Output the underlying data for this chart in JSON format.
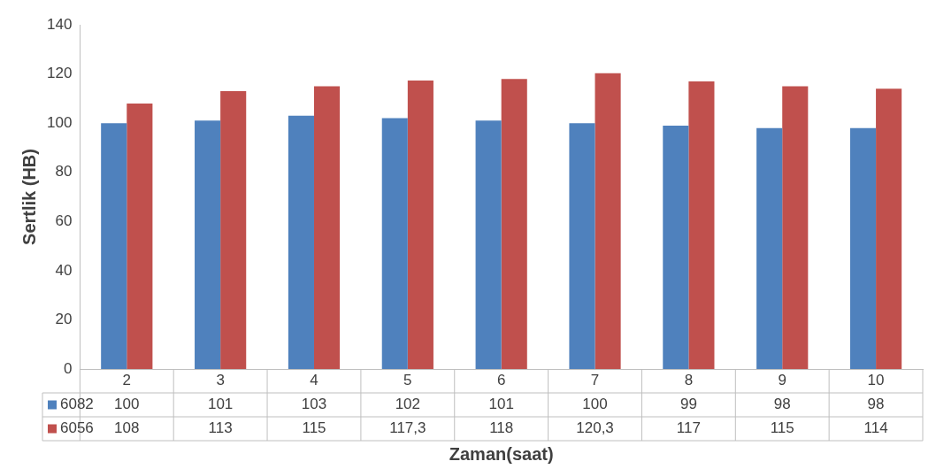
{
  "chart_data": {
    "type": "bar",
    "xlabel": "Zaman(saat)",
    "ylabel": "Sertlik (HB)",
    "categories": [
      "2",
      "3",
      "4",
      "5",
      "6",
      "7",
      "8",
      "9",
      "10"
    ],
    "series": [
      {
        "name": "6082",
        "color": "#4f81bd",
        "values": [
          100,
          101,
          103,
          102,
          101,
          100,
          99,
          98,
          98
        ],
        "value_labels": [
          "100",
          "101",
          "103",
          "102",
          "101",
          "100",
          "99",
          "98",
          "98"
        ]
      },
      {
        "name": "6056",
        "color": "#c0504d",
        "values": [
          108,
          113,
          115,
          117.3,
          118,
          120.3,
          117,
          115,
          114
        ],
        "value_labels": [
          "108",
          "113",
          "115",
          "117,3",
          "118",
          "120,3",
          "117",
          "115",
          "114"
        ]
      }
    ],
    "ylim": [
      0,
      140
    ],
    "yticks": [
      0,
      20,
      40,
      60,
      80,
      100,
      120,
      140
    ],
    "grid": false,
    "legend": "bottom"
  }
}
